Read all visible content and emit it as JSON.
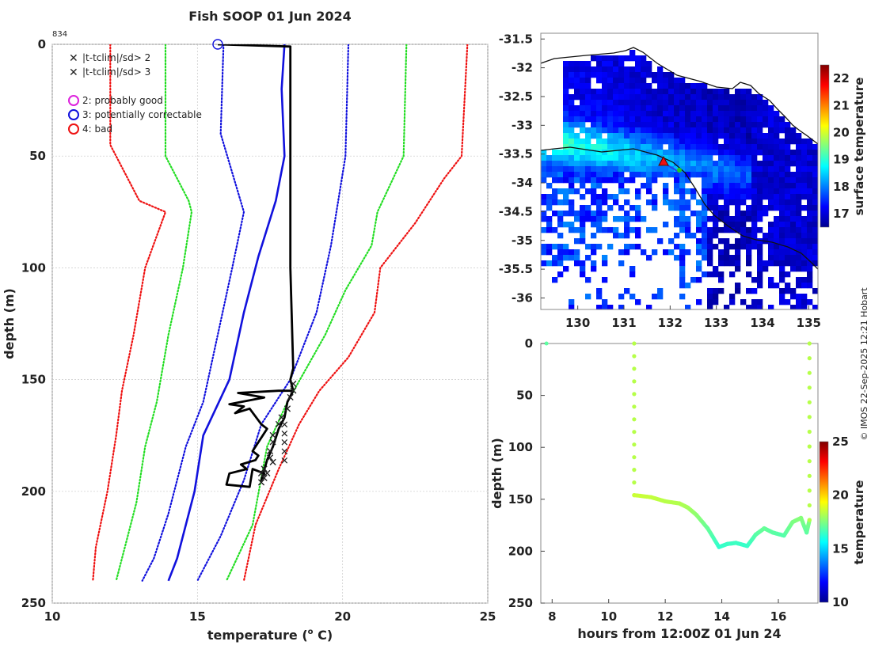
{
  "title": "Fish SOOP 01 Jun 2024",
  "profile_id": "834",
  "credit": "© IMOS 22-Sep-2025 12:21 Hobart",
  "legend": {
    "x_items": [
      {
        "label": "|t-tclim|/sd> 2",
        "color": "#22dd22"
      },
      {
        "label": "|t-tclim|/sd> 3",
        "color": "#ee1111"
      }
    ],
    "o_items": [
      {
        "label": "2: probably good",
        "color": "#dd22dd"
      },
      {
        "label": "3: potentially correctable",
        "color": "#1111dd"
      },
      {
        "label": "4: bad",
        "color": "#ee1111"
      }
    ]
  },
  "chart_data": [
    {
      "name": "profile",
      "type": "line",
      "xlabel": "temperature (o C)",
      "ylabel": "depth (m)",
      "xlim": [
        10,
        25
      ],
      "ylim": [
        250,
        0
      ],
      "xticks": [
        "10",
        "15",
        "20",
        "25"
      ],
      "yticks": [
        "0",
        "50",
        "100",
        "150",
        "200",
        "250"
      ],
      "grid": true,
      "series": [
        {
          "name": "clim mean",
          "color": "#1111dd",
          "style": "solid",
          "points": [
            [
              18.0,
              0
            ],
            [
              17.9,
              20
            ],
            [
              18.0,
              50
            ],
            [
              17.7,
              70
            ],
            [
              17.1,
              95
            ],
            [
              16.6,
              120
            ],
            [
              16.1,
              150
            ],
            [
              15.2,
              175
            ],
            [
              14.9,
              200
            ],
            [
              14.3,
              230
            ],
            [
              14.0,
              240
            ]
          ]
        },
        {
          "name": "clim -1sd",
          "color": "#1111dd",
          "style": "dotted",
          "points": [
            [
              15.9,
              0
            ],
            [
              15.8,
              40
            ],
            [
              16.6,
              75
            ],
            [
              16.2,
              100
            ],
            [
              15.7,
              130
            ],
            [
              15.2,
              160
            ],
            [
              14.6,
              180
            ],
            [
              14.0,
              210
            ],
            [
              13.5,
              230
            ],
            [
              13.1,
              240
            ]
          ]
        },
        {
          "name": "clim +1sd",
          "color": "#1111dd",
          "style": "dotted",
          "points": [
            [
              20.2,
              0
            ],
            [
              20.1,
              50
            ],
            [
              19.6,
              90
            ],
            [
              19.1,
              120
            ],
            [
              18.2,
              150
            ],
            [
              17.2,
              170
            ],
            [
              16.6,
              195
            ],
            [
              15.8,
              220
            ],
            [
              15.0,
              240
            ]
          ]
        },
        {
          "name": "clim -2sd",
          "color": "#22dd22",
          "style": "dotted",
          "points": [
            [
              13.9,
              0
            ],
            [
              13.9,
              50
            ],
            [
              14.7,
              70
            ],
            [
              14.8,
              75
            ],
            [
              14.5,
              100
            ],
            [
              14.0,
              130
            ],
            [
              13.6,
              160
            ],
            [
              13.2,
              180
            ],
            [
              12.9,
              205
            ],
            [
              12.5,
              225
            ],
            [
              12.2,
              240
            ]
          ]
        },
        {
          "name": "clim +2sd",
          "color": "#22dd22",
          "style": "dotted",
          "points": [
            [
              22.2,
              0
            ],
            [
              22.1,
              50
            ],
            [
              21.2,
              75
            ],
            [
              21.0,
              90
            ],
            [
              20.1,
              110
            ],
            [
              19.4,
              130
            ],
            [
              18.1,
              160
            ],
            [
              17.4,
              180
            ],
            [
              16.9,
              215
            ],
            [
              16.0,
              240
            ]
          ]
        },
        {
          "name": "clim -3sd",
          "color": "#ee1111",
          "style": "dotted",
          "points": [
            [
              12.0,
              0
            ],
            [
              12.0,
              45
            ],
            [
              13.0,
              70
            ],
            [
              13.9,
              75
            ],
            [
              13.2,
              100
            ],
            [
              12.8,
              130
            ],
            [
              12.4,
              155
            ],
            [
              12.2,
              175
            ],
            [
              11.9,
              200
            ],
            [
              11.5,
              225
            ],
            [
              11.4,
              240
            ]
          ]
        },
        {
          "name": "clim +3sd",
          "color": "#ee1111",
          "style": "dotted",
          "points": [
            [
              24.3,
              0
            ],
            [
              24.1,
              50
            ],
            [
              23.5,
              60
            ],
            [
              22.5,
              80
            ],
            [
              21.3,
              100
            ],
            [
              21.1,
              120
            ],
            [
              20.2,
              140
            ],
            [
              19.2,
              155
            ],
            [
              18.5,
              170
            ],
            [
              17.8,
              190
            ],
            [
              17.0,
              215
            ],
            [
              16.6,
              240
            ]
          ]
        },
        {
          "name": "observed",
          "color": "#000000",
          "style": "solid",
          "points": [
            [
              15.7,
              0
            ],
            [
              18.2,
              1
            ],
            [
              18.2,
              10
            ],
            [
              18.2,
              100
            ],
            [
              18.3,
              145
            ],
            [
              18.2,
              150
            ],
            [
              18.3,
              155
            ],
            [
              17.8,
              155
            ],
            [
              16.4,
              156
            ],
            [
              17.3,
              158
            ],
            [
              16.1,
              161
            ],
            [
              16.6,
              162
            ],
            [
              16.3,
              165
            ],
            [
              16.8,
              163
            ],
            [
              17.2,
              170
            ],
            [
              17.4,
              172
            ],
            [
              17.1,
              178
            ],
            [
              16.9,
              182
            ],
            [
              17.1,
              184
            ],
            [
              17.0,
              186
            ],
            [
              16.5,
              188
            ],
            [
              16.6,
              189
            ],
            [
              16.7,
              190
            ],
            [
              16.1,
              192
            ],
            [
              16.0,
              197
            ],
            [
              16.8,
              198
            ],
            [
              16.9,
              190
            ],
            [
              17.3,
              192
            ],
            [
              17.2,
              195
            ],
            [
              17.4,
              186
            ],
            [
              17.6,
              180
            ],
            [
              17.8,
              172
            ],
            [
              18.0,
              167
            ],
            [
              18.1,
              160
            ],
            [
              18.3,
              155
            ]
          ]
        }
      ],
      "flags": {
        "green_x": [
          [
            18.3,
            152
          ],
          [
            18.3,
            155
          ],
          [
            18.2,
            158
          ],
          [
            18.1,
            163
          ],
          [
            17.9,
            167
          ],
          [
            17.8,
            170
          ],
          [
            17.6,
            175
          ],
          [
            17.6,
            178
          ],
          [
            17.5,
            182
          ],
          [
            17.5,
            185
          ],
          [
            17.6,
            187
          ],
          [
            17.3,
            190
          ],
          [
            17.2,
            192
          ],
          [
            17.3,
            194
          ],
          [
            17.4,
            192
          ],
          [
            17.2,
            196
          ]
        ],
        "red_x": [
          [
            18.0,
            170
          ],
          [
            18.0,
            174
          ],
          [
            18.0,
            178
          ],
          [
            18.0,
            182
          ],
          [
            18.0,
            186
          ]
        ],
        "blue_circle": [
          [
            15.7,
            0
          ]
        ]
      }
    },
    {
      "name": "surface temperature map",
      "type": "heatmap",
      "xlim": [
        129.2,
        135.2
      ],
      "ylim": [
        -36.2,
        -31.4
      ],
      "xticks": [
        "130",
        "131",
        "132",
        "133",
        "134",
        "135"
      ],
      "yticks": [
        "-31.5",
        "-32",
        "-32.5",
        "-33",
        "-33.5",
        "-34",
        "-34.5",
        "-35",
        "-35.5",
        "-36"
      ],
      "colorbar": {
        "label": "surface temperature",
        "min": 16.5,
        "max": 22.5,
        "ticks": [
          "17",
          "18",
          "19",
          "20",
          "21",
          "22"
        ]
      },
      "ship_position": [
        131.8,
        -33.5
      ]
    },
    {
      "name": "depth time",
      "type": "scatter",
      "xlabel": "hours from 12:00Z 01 Jun 24",
      "ylabel": "depth (m)",
      "xlim": [
        7.6,
        17.4
      ],
      "ylim": [
        250,
        0
      ],
      "xticks": [
        "8",
        "10",
        "12",
        "14",
        "16"
      ],
      "yticks": [
        "0",
        "50",
        "100",
        "150",
        "200",
        "250"
      ],
      "colorbar": {
        "label": "temperature",
        "min": 10,
        "max": 25,
        "ticks": [
          "10",
          "15",
          "20",
          "25"
        ]
      },
      "series": [
        {
          "name": "surface point",
          "points": [
            [
              7.8,
              0
            ]
          ],
          "temp": 17
        },
        {
          "name": "descent",
          "points": [
            [
              10.9,
              0
            ],
            [
              10.9,
              146
            ]
          ],
          "temp": 18.3
        },
        {
          "name": "bottom track",
          "points": [
            [
              10.9,
              146
            ],
            [
              11.5,
              148
            ],
            [
              12.0,
              152
            ],
            [
              12.5,
              154
            ],
            [
              12.8,
              158
            ],
            [
              13.1,
              165
            ],
            [
              13.5,
              178
            ],
            [
              13.9,
              196
            ],
            [
              14.2,
              193
            ],
            [
              14.5,
              192
            ],
            [
              14.9,
              195
            ],
            [
              15.2,
              184
            ],
            [
              15.5,
              178
            ],
            [
              15.8,
              182
            ],
            [
              16.2,
              185
            ],
            [
              16.5,
              172
            ],
            [
              16.8,
              168
            ],
            [
              17.0,
              182
            ],
            [
              17.1,
              170
            ]
          ],
          "temp": 17.2
        },
        {
          "name": "ascent",
          "points": [
            [
              17.1,
              170
            ],
            [
              17.1,
              0
            ]
          ],
          "temp": 18.3
        }
      ]
    }
  ]
}
